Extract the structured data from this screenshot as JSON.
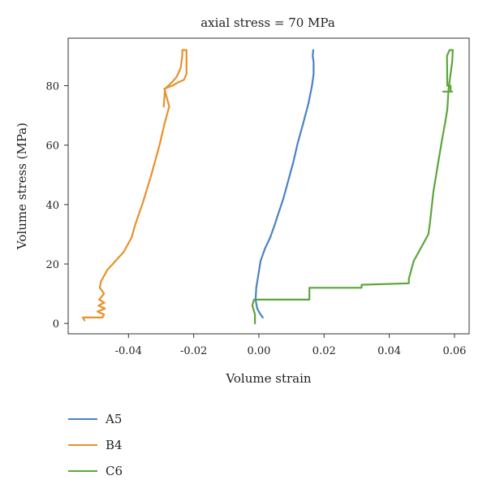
{
  "chart_data": {
    "type": "line",
    "title": "axial stress = 70 MPa",
    "xlabel": "Volume strain",
    "ylabel": "Volume stress (MPa)",
    "xlim": [
      -0.0585,
      0.0645
    ],
    "ylim": [
      -3.5,
      96
    ],
    "xticks": [
      -0.04,
      -0.02,
      0.0,
      0.02,
      0.04,
      0.06
    ],
    "xtick_labels": [
      "-0.04",
      "-0.02",
      "0.00",
      "0.02",
      "0.04",
      "0.06"
    ],
    "yticks": [
      0,
      20,
      40,
      60,
      80
    ],
    "ytick_labels": [
      "0",
      "20",
      "40",
      "60",
      "80"
    ],
    "grid": false,
    "legend_position": "bottom-left",
    "series": [
      {
        "name": "A5",
        "color": "#4C82C3",
        "x": [
          0.0012,
          0.0005,
          -0.0005,
          -0.001,
          -0.0008,
          -0.0002,
          0.0005,
          0.0018,
          0.0035,
          0.0048,
          0.006,
          0.0075,
          0.009,
          0.0105,
          0.012,
          0.0135,
          0.0152,
          0.0163,
          0.0168,
          0.0168,
          0.0165,
          0.0167
        ],
        "y": [
          2,
          3,
          5,
          8,
          12,
          16,
          21,
          25,
          29,
          33,
          37,
          42,
          48,
          54,
          61,
          67,
          74,
          80,
          84,
          88,
          90,
          92
        ]
      },
      {
        "name": "B4",
        "color": "#E8912D",
        "x": [
          -0.0535,
          -0.054,
          -0.05,
          -0.048,
          -0.0475,
          -0.0495,
          -0.0472,
          -0.0492,
          -0.0474,
          -0.049,
          -0.0475,
          -0.0488,
          -0.0485,
          -0.0475,
          -0.0465,
          -0.0448,
          -0.044,
          -0.0415,
          -0.039,
          -0.038,
          -0.0355,
          -0.033,
          -0.0305,
          -0.029,
          -0.0275,
          -0.029,
          -0.0265,
          -0.025,
          -0.023,
          -0.0222,
          -0.0222,
          -0.0235,
          -0.0235,
          -0.024,
          -0.0252,
          -0.0268,
          -0.0288,
          -0.0292
        ],
        "y": [
          1,
          2,
          2,
          2,
          3,
          4,
          5,
          6,
          7,
          8,
          10,
          12,
          14,
          16,
          18,
          20,
          21,
          24,
          29,
          33,
          41,
          50,
          60,
          67,
          73,
          79,
          80,
          81,
          82,
          84,
          92,
          92,
          90,
          86,
          83,
          81,
          79,
          73
        ]
      },
      {
        "name": "C6",
        "color": "#5BA63C",
        "x": [
          -0.0012,
          -0.0012,
          -0.002,
          -0.0015,
          0.0155,
          0.0155,
          0.0315,
          0.0315,
          0.046,
          0.046,
          0.0475,
          0.0495,
          0.0505,
          0.052,
          0.0525,
          0.0535,
          0.055,
          0.0562,
          0.0572,
          0.0578,
          0.0582,
          0.0593,
          0.0595,
          0.0585,
          0.0577,
          0.0578,
          0.0588,
          0.0588,
          0.0565,
          0.0593
        ],
        "y": [
          0,
          3,
          6,
          8,
          8,
          12,
          12,
          13,
          13.5,
          15,
          21,
          25,
          27,
          30,
          34,
          44,
          54,
          62,
          68,
          72,
          79,
          88,
          92,
          92,
          90,
          80,
          80,
          78,
          78,
          78
        ]
      }
    ]
  }
}
